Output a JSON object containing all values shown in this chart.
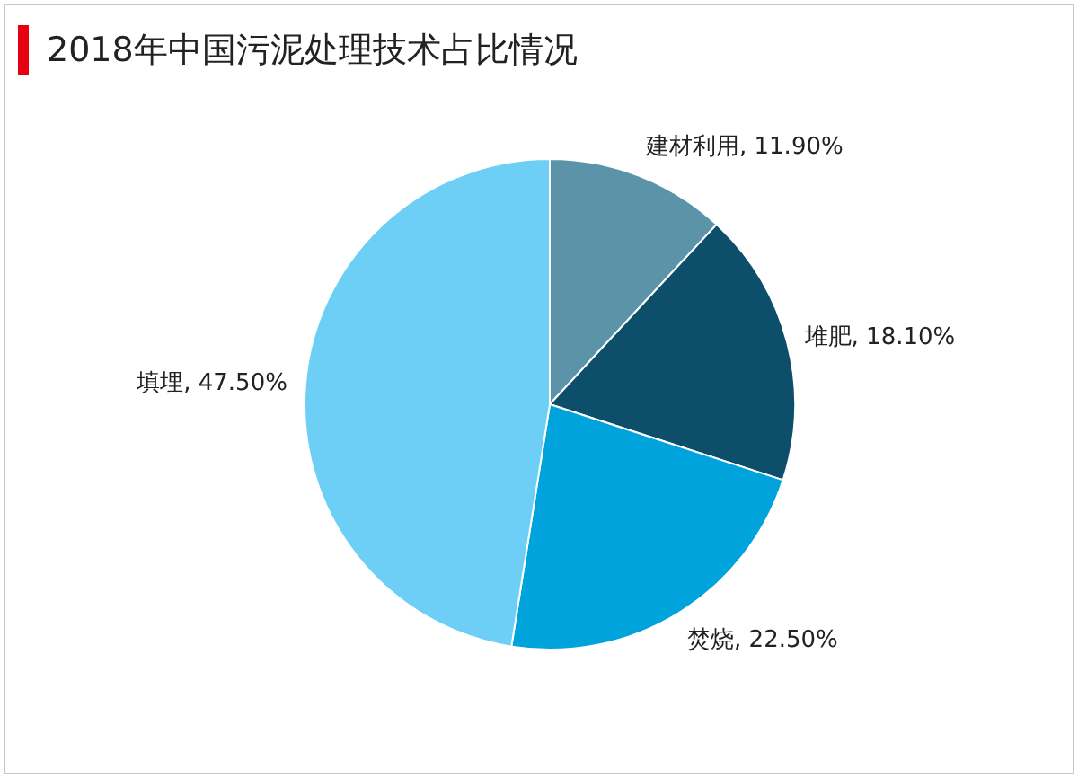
{
  "chart_data": {
    "type": "pie",
    "title": "2018年中国污泥处理技术占比情况",
    "categories": [
      "建材利用",
      "堆肥",
      "焚烧",
      "填埋"
    ],
    "values": [
      11.9,
      18.1,
      22.5,
      47.5
    ],
    "value_labels": [
      "11.90%",
      "18.10%",
      "22.50%",
      "47.50%"
    ],
    "colors": [
      "#5b93a9",
      "#0d4e6a",
      "#00a3dc",
      "#6dcff6"
    ],
    "legend": false
  }
}
